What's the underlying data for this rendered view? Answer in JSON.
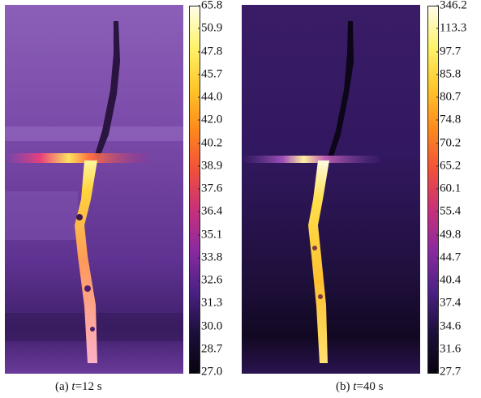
{
  "panels": [
    {
      "id": "a",
      "caption_prefix": "(a) ",
      "caption_var": "t",
      "caption_rest": "=12 s",
      "colorbar_ticks": [
        "65.8",
        "50.9",
        "47.8",
        "45.7",
        "44.0",
        "42.0",
        "40.2",
        "38.9",
        "37.6",
        "36.4",
        "35.1",
        "33.8",
        "32.6",
        "31.3",
        "30.0",
        "28.7",
        "27.0"
      ]
    },
    {
      "id": "b",
      "caption_prefix": "(b) ",
      "caption_var": "t",
      "caption_rest": "=40 s",
      "colorbar_ticks": [
        "346.2",
        "113.3",
        "97.7",
        "85.8",
        "80.7",
        "74.8",
        "70.2",
        "65.2",
        "60.1",
        "55.4",
        "49.8",
        "44.7",
        "40.4",
        "37.4",
        "34.6",
        "31.6",
        "27.7"
      ]
    }
  ],
  "colors": {
    "colormap": [
      "#fffde8",
      "#fff36a",
      "#ffc72a",
      "#ff8a1c",
      "#f2503a",
      "#c8307a",
      "#8a2aa0",
      "#4c2186",
      "#1c0f3c",
      "#08040f"
    ],
    "background_a": "#6e3f9e",
    "background_b": "#2b1550"
  }
}
